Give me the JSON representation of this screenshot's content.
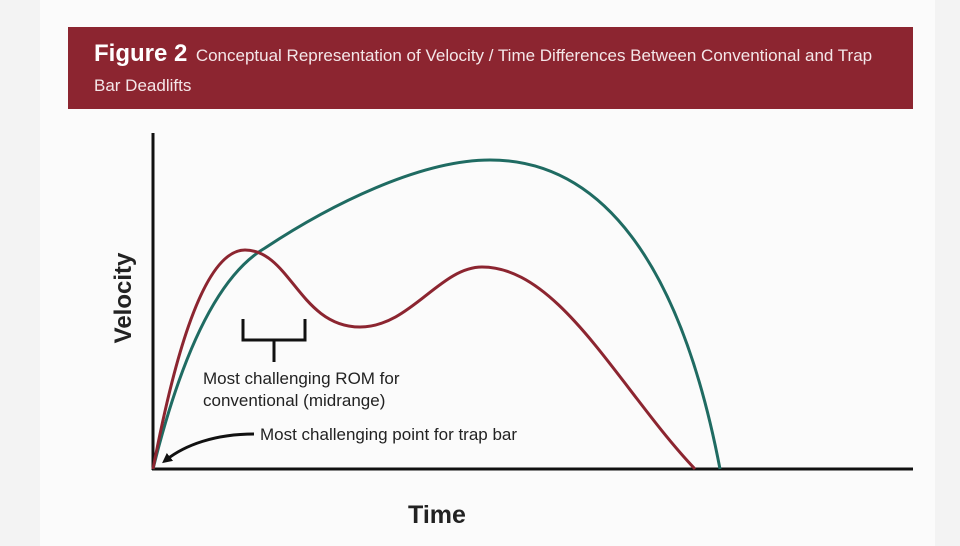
{
  "header": {
    "figure_label": "Figure 2",
    "title": "Conceptual Representation of Velocity / Time Differences Between Conventional and Trap Bar Deadlifts"
  },
  "y_axis_label": "Velocity",
  "x_axis_label": "Time",
  "annotations": [
    {
      "lines": [
        "Most challenging ROM for",
        "conventional (midrange)"
      ]
    },
    {
      "lines": [
        "Most challenging point for trap bar"
      ]
    }
  ]
}
